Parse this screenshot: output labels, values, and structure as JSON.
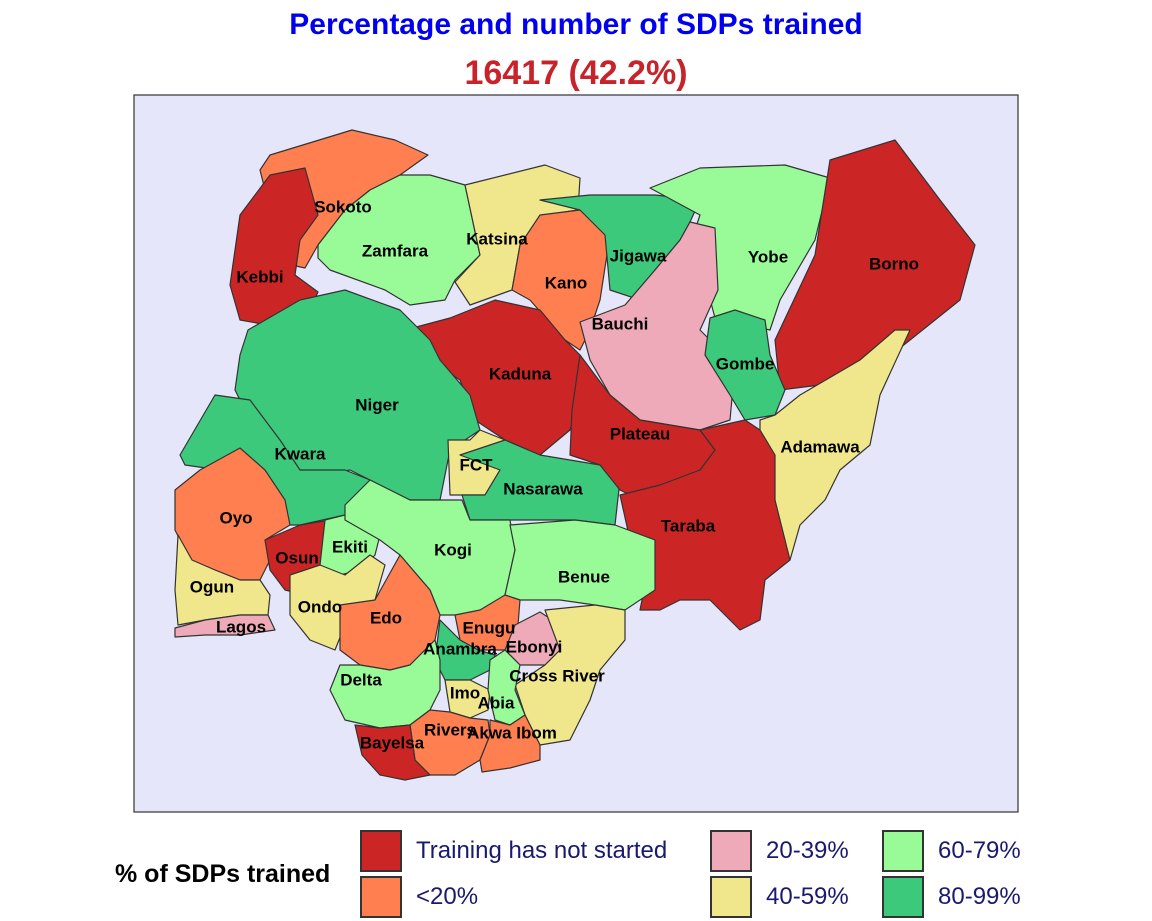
{
  "title": "Percentage and number of SDPs trained",
  "subtitle": "16417 (42.2%)",
  "colors": {
    "title": "#0000ee",
    "subtitle": "#c8232a",
    "background": "#e6e6fa",
    "legend_text": "#191970",
    "not_started": "#cc2525",
    "lt20": "#ff7f50",
    "p20_39": "#eeaab8",
    "p40_59": "#f0e68c",
    "p60_79": "#98fb98",
    "p80_99": "#3cc97c"
  },
  "legend": {
    "title": "% of SDPs trained",
    "items": [
      {
        "key": "not_started",
        "label": "Training has not started"
      },
      {
        "key": "lt20",
        "label": "<20%"
      },
      {
        "key": "p20_39",
        "label": "20-39%"
      },
      {
        "key": "p40_59",
        "label": "40-59%"
      },
      {
        "key": "p60_79",
        "label": "60-79%"
      },
      {
        "key": "p80_99",
        "label": "80-99%"
      }
    ]
  },
  "states": [
    {
      "name": "Sokoto",
      "category": "lt20"
    },
    {
      "name": "Kebbi",
      "category": "not_started"
    },
    {
      "name": "Zamfara",
      "category": "p60_79"
    },
    {
      "name": "Katsina",
      "category": "p40_59"
    },
    {
      "name": "Kano",
      "category": "lt20"
    },
    {
      "name": "Jigawa",
      "category": "p80_99"
    },
    {
      "name": "Yobe",
      "category": "p60_79"
    },
    {
      "name": "Borno",
      "category": "not_started"
    },
    {
      "name": "Bauchi",
      "category": "p20_39"
    },
    {
      "name": "Gombe",
      "category": "p80_99"
    },
    {
      "name": "Kaduna",
      "category": "not_started"
    },
    {
      "name": "Niger",
      "category": "p80_99"
    },
    {
      "name": "Kwara",
      "category": "p80_99"
    },
    {
      "name": "FCT",
      "category": "p40_59"
    },
    {
      "name": "Nasarawa",
      "category": "p80_99"
    },
    {
      "name": "Plateau",
      "category": "not_started"
    },
    {
      "name": "Adamawa",
      "category": "p40_59"
    },
    {
      "name": "Taraba",
      "category": "not_started"
    },
    {
      "name": "Oyo",
      "category": "lt20"
    },
    {
      "name": "Osun",
      "category": "not_started"
    },
    {
      "name": "Ekiti",
      "category": "p60_79"
    },
    {
      "name": "Kogi",
      "category": "p60_79"
    },
    {
      "name": "Benue",
      "category": "p60_79"
    },
    {
      "name": "Ogun",
      "category": "p40_59"
    },
    {
      "name": "Ondo",
      "category": "p40_59"
    },
    {
      "name": "Lagos",
      "category": "p20_39"
    },
    {
      "name": "Edo",
      "category": "lt20"
    },
    {
      "name": "Enugu",
      "category": "lt20"
    },
    {
      "name": "Anambra",
      "category": "p80_99"
    },
    {
      "name": "Ebonyi",
      "category": "p20_39"
    },
    {
      "name": "Cross River",
      "category": "p40_59"
    },
    {
      "name": "Delta",
      "category": "p60_79"
    },
    {
      "name": "Imo",
      "category": "p40_59"
    },
    {
      "name": "Abia",
      "category": "p60_79"
    },
    {
      "name": "Rivers",
      "category": "lt20"
    },
    {
      "name": "Akwa Ibom",
      "category": "lt20"
    },
    {
      "name": "Bayelsa",
      "category": "not_started"
    }
  ]
}
